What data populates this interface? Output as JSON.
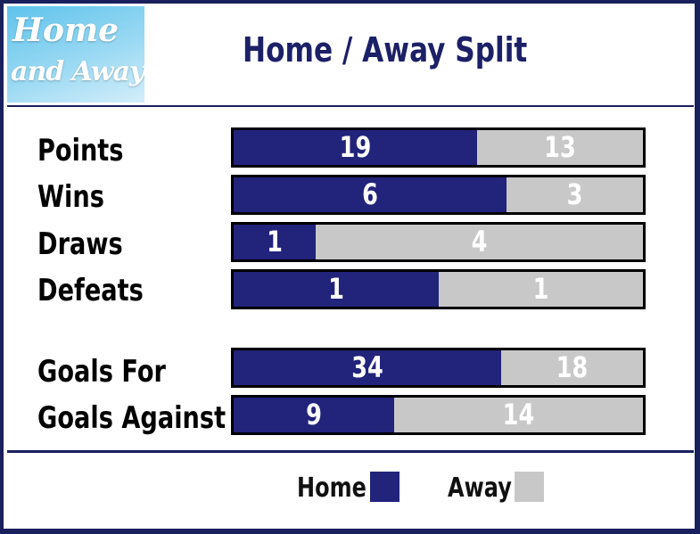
{
  "logo": {
    "line1": "Home",
    "line2": "and Away"
  },
  "chart_data": {
    "type": "bar",
    "orientation": "horizontal-stacked-100",
    "title": "Home / Away Split",
    "categories": [
      "Points",
      "Wins",
      "Draws",
      "Defeats",
      "Goals For",
      "Goals Against"
    ],
    "series": [
      {
        "name": "Home",
        "values": [
          19,
          6,
          1,
          1,
          34,
          9
        ]
      },
      {
        "name": "Away",
        "values": [
          13,
          3,
          4,
          1,
          18,
          14
        ]
      }
    ],
    "colors": {
      "home": "#22237a",
      "away": "#c8c8c8"
    },
    "legend_position": "bottom",
    "grid": false
  }
}
